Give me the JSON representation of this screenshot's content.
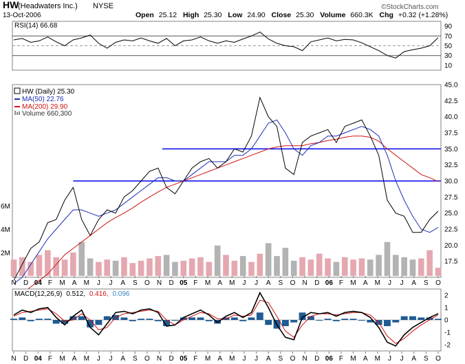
{
  "chart_data": {
    "type": "stock",
    "header": {
      "ticker": "HW",
      "company": "(Headwaters Inc.)",
      "exchange": "NYSE",
      "date": "13-Oct-2006",
      "open_label": "Open",
      "open": "25.12",
      "high_label": "High",
      "high": "25.30",
      "low_label": "Low",
      "low": "24.90",
      "close_label": "Close",
      "close": "25.30",
      "volume_label": "Volume",
      "volume": "660.3K",
      "chg_label": "Chg",
      "chg": "+0.32 (+1.28%)",
      "watermark": "©StockCharts.com"
    },
    "rsi": {
      "label": "RSI(14) 66.68",
      "ylim": [
        0,
        100
      ],
      "ticks": [
        "90",
        "70",
        "50",
        "30",
        "10"
      ],
      "levels": [
        70,
        50,
        30
      ],
      "x": [
        0,
        0.02,
        0.04,
        0.06,
        0.08,
        0.1,
        0.12,
        0.14,
        0.16,
        0.18,
        0.2,
        0.22,
        0.24,
        0.26,
        0.28,
        0.3,
        0.32,
        0.34,
        0.36,
        0.38,
        0.4,
        0.42,
        0.44,
        0.46,
        0.48,
        0.5,
        0.52,
        0.54,
        0.56,
        0.58,
        0.6,
        0.62,
        0.64,
        0.66,
        0.68,
        0.7,
        0.72,
        0.74,
        0.76,
        0.78,
        0.8,
        0.82,
        0.84,
        0.86,
        0.88,
        0.9,
        0.92,
        0.94,
        0.96,
        0.98,
        1.0
      ],
      "values": [
        62,
        65,
        57,
        60,
        68,
        58,
        50,
        62,
        66,
        72,
        55,
        45,
        57,
        62,
        60,
        66,
        60,
        55,
        65,
        50,
        60,
        62,
        68,
        60,
        55,
        60,
        57,
        64,
        70,
        78,
        64,
        55,
        50,
        48,
        40,
        58,
        62,
        66,
        60,
        63,
        62,
        56,
        48,
        40,
        30,
        25,
        38,
        42,
        45,
        50,
        66.68
      ]
    },
    "price": {
      "legend": [
        "HW (Daily) 25.30",
        "MA(50) 22.76",
        "MA(200) 29.90",
        "Volume 660,300"
      ],
      "colors": {
        "price": "#000000",
        "ma50": "#1b2fb5",
        "ma200": "#d01212",
        "volume_up": "#e5a8b0",
        "volume_down": "#b3b3b3",
        "hline": "#0000ee"
      },
      "ylim": [
        15,
        45
      ],
      "ticks": [
        "45.0",
        "42.5",
        "40.0",
        "37.5",
        "35.0",
        "32.5",
        "30.0",
        "27.5",
        "25.0",
        "22.5",
        "20.0",
        "17.5"
      ],
      "volume_ticks": [
        "6M",
        "4M",
        "2M"
      ],
      "hlines": [
        35.0,
        30.0
      ],
      "x": [
        0,
        0.02,
        0.04,
        0.06,
        0.08,
        0.1,
        0.12,
        0.14,
        0.16,
        0.18,
        0.2,
        0.22,
        0.24,
        0.26,
        0.28,
        0.3,
        0.32,
        0.34,
        0.36,
        0.38,
        0.4,
        0.42,
        0.44,
        0.46,
        0.48,
        0.5,
        0.52,
        0.54,
        0.56,
        0.58,
        0.6,
        0.62,
        0.64,
        0.66,
        0.68,
        0.7,
        0.72,
        0.74,
        0.76,
        0.78,
        0.8,
        0.82,
        0.84,
        0.86,
        0.88,
        0.9,
        0.92,
        0.94,
        0.96,
        0.98,
        1.0
      ],
      "close": [
        14.5,
        17,
        19.5,
        20.5,
        23.5,
        24,
        27,
        29,
        24,
        21.5,
        24,
        25.5,
        25,
        27.5,
        28.5,
        30,
        31.5,
        32,
        29,
        28,
        30,
        32,
        33,
        33.5,
        32,
        33,
        35,
        34.5,
        37,
        43,
        40,
        38.5,
        32,
        31,
        36,
        37,
        37.5,
        38,
        36,
        38.5,
        39,
        39.5,
        37,
        34,
        27,
        25,
        24.5,
        22,
        22,
        24,
        25.3
      ],
      "ma50": [
        14,
        15,
        17,
        19,
        21,
        22.5,
        24,
        25.5,
        25.5,
        25,
        24.5,
        25,
        25.5,
        26.5,
        27.5,
        28.5,
        29.5,
        30.5,
        30.5,
        30,
        30,
        31,
        32,
        33,
        33,
        33,
        34,
        34,
        35,
        37,
        39,
        39.5,
        37.5,
        35,
        34,
        35.5,
        36,
        37,
        37,
        37.5,
        38,
        38.5,
        38,
        37,
        34,
        30,
        27,
        24.5,
        22.5,
        22,
        22.76
      ],
      "ma200": [
        11.5,
        12.5,
        13.5,
        14.5,
        15.5,
        17,
        18.5,
        19.5,
        20.5,
        21.5,
        22.5,
        23.5,
        24.3,
        25,
        25.8,
        26.7,
        27.5,
        28.3,
        29,
        29.5,
        30,
        30.5,
        31,
        31.5,
        32,
        32.5,
        33,
        33.5,
        34,
        34.5,
        35,
        35.3,
        35.5,
        35.5,
        35.5,
        35.8,
        36,
        36.3,
        36.5,
        36.8,
        37,
        37,
        36.8,
        36.2,
        35,
        34,
        33,
        32,
        31,
        30.5,
        29.9
      ],
      "volume": [
        1.4,
        1.6,
        1.2,
        1.8,
        2.2,
        1.6,
        1.4,
        2.0,
        2.9,
        1.5,
        1.2,
        1.4,
        1.3,
        1.6,
        1.1,
        1.3,
        1.5,
        1.7,
        1.8,
        1.2,
        1.3,
        1.5,
        1.6,
        1.2,
        2.6,
        1.8,
        1.3,
        1.7,
        1.2,
        1.9,
        2.8,
        1.7,
        2.4,
        1.3,
        1.6,
        1.4,
        1.9,
        1.5,
        1.2,
        1.6,
        1.4,
        1.5,
        1.4,
        1.8,
        2.9,
        1.8,
        1.6,
        1.4,
        1.5,
        2.2,
        0.7
      ]
    },
    "macd": {
      "label_prefix": "MACD(12,26,9)",
      "macd_value": "0.512,",
      "signal_value": "0.416,",
      "hist_value": "0.096",
      "ylim": [
        -2.5,
        2.5
      ],
      "ticks": [
        "2",
        "1",
        "0",
        "-1",
        "-2"
      ],
      "colors": {
        "macd": "#000000",
        "signal": "#d01212",
        "hist": "#1f5b93",
        "hist_label": "#3b82c4"
      },
      "x": [
        0,
        0.02,
        0.04,
        0.06,
        0.08,
        0.1,
        0.12,
        0.14,
        0.16,
        0.18,
        0.2,
        0.22,
        0.24,
        0.26,
        0.28,
        0.3,
        0.32,
        0.34,
        0.36,
        0.38,
        0.4,
        0.42,
        0.44,
        0.46,
        0.48,
        0.5,
        0.52,
        0.54,
        0.56,
        0.58,
        0.6,
        0.62,
        0.64,
        0.66,
        0.68,
        0.7,
        0.72,
        0.74,
        0.76,
        0.78,
        0.8,
        0.82,
        0.84,
        0.86,
        0.88,
        0.9,
        0.92,
        0.94,
        0.96,
        0.98,
        1.0
      ],
      "macd_line": [
        0.4,
        0.8,
        0.6,
        0.9,
        1.0,
        0.2,
        -0.4,
        0.3,
        0.8,
        -0.6,
        -1.2,
        -0.3,
        0.6,
        0.7,
        0.5,
        0.8,
        0.9,
        0.6,
        -0.5,
        -0.4,
        0.2,
        0.5,
        0.8,
        0.4,
        -0.2,
        0.3,
        0.6,
        0.2,
        0.6,
        2.2,
        1.0,
        -0.4,
        -1.4,
        -1.6,
        0.2,
        0.6,
        0.5,
        0.6,
        0.3,
        0.6,
        0.7,
        0.6,
        0.2,
        -0.6,
        -1.8,
        -2.1,
        -1.2,
        -0.6,
        -0.2,
        0.2,
        0.512
      ],
      "signal_line": [
        0.3,
        0.6,
        0.7,
        0.8,
        0.9,
        0.5,
        -0.1,
        0.0,
        0.5,
        0.0,
        -0.8,
        -0.6,
        0.2,
        0.5,
        0.6,
        0.7,
        0.8,
        0.7,
        0.0,
        -0.4,
        0.0,
        0.3,
        0.6,
        0.5,
        0.1,
        0.1,
        0.4,
        0.3,
        0.4,
        1.6,
        1.4,
        0.3,
        -0.9,
        -1.4,
        -0.4,
        0.3,
        0.5,
        0.5,
        0.4,
        0.5,
        0.6,
        0.6,
        0.4,
        -0.2,
        -1.3,
        -1.9,
        -1.5,
        -0.9,
        -0.4,
        0.0,
        0.416
      ]
    },
    "x_labels": [
      "N",
      "D",
      "04",
      "F",
      "M",
      "A",
      "M",
      "J",
      "J",
      "A",
      "S",
      "O",
      "N",
      "D",
      "05",
      "F",
      "M",
      "A",
      "M",
      "J",
      "J",
      "A",
      "S",
      "O",
      "N",
      "D",
      "06",
      "F",
      "M",
      "A",
      "M",
      "J",
      "J",
      "A",
      "S",
      "O"
    ]
  }
}
